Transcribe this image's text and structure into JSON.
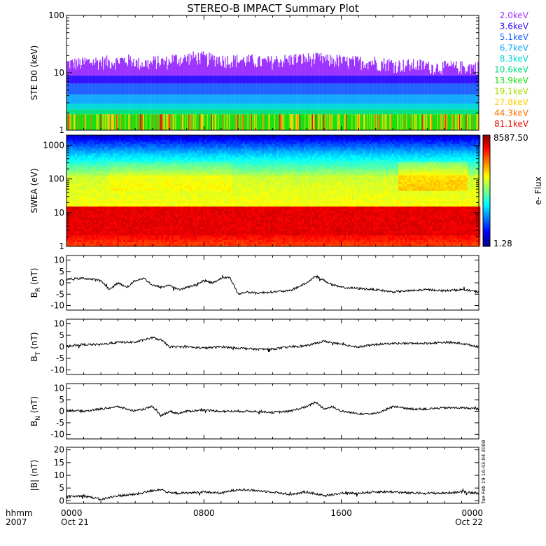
{
  "title": "STEREO-B IMPACT Summary Plot",
  "footer": {
    "left_top": "hhmm",
    "left_bottom": "2007",
    "stamp": "Tue Feb 19 16:43:04 2008"
  },
  "colors": {
    "axis": "#000000",
    "trace": "#000000"
  },
  "chart_data": [
    {
      "type": "area",
      "ylabel": "STE D0 (keV)",
      "yscale": "log",
      "ylim": [
        1,
        100
      ],
      "yticks": [
        "1",
        "10",
        "100"
      ],
      "legend": [
        {
          "label": "2.0keV",
          "color": "#9b30ff"
        },
        {
          "label": "3.6keV",
          "color": "#3010ff"
        },
        {
          "label": "5.1keV",
          "color": "#1e60ff"
        },
        {
          "label": "6.7keV",
          "color": "#10a8ff"
        },
        {
          "label": "8.3keV",
          "color": "#00d8d8"
        },
        {
          "label": "10.6keV",
          "color": "#00e080"
        },
        {
          "label": "13.9keV",
          "color": "#10e010"
        },
        {
          "label": "19.1keV",
          "color": "#a8e000"
        },
        {
          "label": "27.8keV",
          "color": "#ffd000"
        },
        {
          "label": "44.3keV",
          "color": "#ff7000"
        },
        {
          "label": "81.1keV",
          "color": "#e01000"
        }
      ],
      "series_top_profile": [
        15,
        16,
        16,
        17,
        15,
        16,
        18,
        19,
        18,
        17,
        17,
        16,
        17,
        18,
        18,
        17,
        16,
        16,
        15,
        14,
        14,
        13,
        13,
        13
      ]
    },
    {
      "type": "heatmap",
      "ylabel": "SWEA (eV)",
      "yscale": "log",
      "ylim": [
        1,
        2000
      ],
      "yticks": [
        "1",
        "10",
        "100",
        "1000"
      ],
      "colorbar": {
        "max": "8587.50",
        "min": "1.28",
        "label": "e- Flux"
      }
    },
    {
      "type": "line",
      "ylabel": "B_R (nT)",
      "ylabel_main": "B",
      "ylabel_sub": "R",
      "ylabel_unit": "(nT)",
      "ylim": [
        -12,
        12
      ],
      "yticks": [
        "10",
        "5",
        "0",
        "-5",
        "-10"
      ],
      "ytick_values": [
        10,
        5,
        0,
        -5,
        -10
      ],
      "x": [
        0,
        1,
        2,
        2.5,
        3,
        3.5,
        4,
        4.5,
        5,
        5.5,
        6,
        6.5,
        7,
        7.5,
        8,
        8.5,
        9,
        9.5,
        10,
        10.5,
        11,
        12,
        13,
        14,
        14.5,
        15,
        15.5,
        16,
        17,
        18,
        19,
        20,
        21,
        22,
        23,
        24
      ],
      "y": [
        1.5,
        2,
        1,
        -3,
        0,
        -2,
        1,
        2,
        -1,
        -2,
        -1,
        -3,
        -2,
        -1,
        1,
        0,
        2,
        2.5,
        -5,
        -4,
        -4.5,
        -4,
        -3.5,
        0,
        3,
        1,
        -1,
        -2,
        -2.5,
        -3,
        -4,
        -3.5,
        -3,
        -3.5,
        -3,
        -4
      ]
    },
    {
      "type": "line",
      "ylabel": "B_T (nT)",
      "ylabel_main": "B",
      "ylabel_sub": "T",
      "ylabel_unit": "(nT)",
      "ylim": [
        -12,
        12
      ],
      "yticks": [
        "10",
        "5",
        "0",
        "-5",
        "-10"
      ],
      "ytick_values": [
        10,
        5,
        0,
        -5,
        -10
      ],
      "x": [
        0,
        1,
        2,
        3,
        4,
        5,
        5.5,
        6,
        7,
        8,
        9,
        10,
        11,
        12,
        13,
        14,
        15,
        16,
        17,
        18,
        19,
        20,
        21,
        22,
        23,
        24
      ],
      "y": [
        0.5,
        1,
        1,
        2,
        2,
        4,
        3,
        0,
        0,
        -0.5,
        0,
        -0.5,
        -1,
        -1,
        0,
        0.5,
        2.5,
        1,
        0,
        1,
        1.5,
        1.5,
        1.5,
        2,
        1.5,
        0
      ]
    },
    {
      "type": "line",
      "ylabel": "B_N (nT)",
      "ylabel_main": "B",
      "ylabel_sub": "N",
      "ylabel_unit": "(nT)",
      "ylim": [
        -12,
        12
      ],
      "yticks": [
        "10",
        "5",
        "0",
        "-5",
        "-10"
      ],
      "ytick_values": [
        10,
        5,
        0,
        -5,
        -10
      ],
      "x": [
        0,
        1,
        2,
        3,
        4,
        5,
        5.5,
        6,
        6.5,
        7,
        8,
        9,
        10,
        11,
        12,
        13,
        14,
        14.5,
        15,
        15.5,
        16,
        17,
        18,
        19,
        20,
        21,
        22,
        23,
        24
      ],
      "y": [
        0.5,
        0,
        1,
        2,
        0,
        2,
        -2,
        0,
        -1,
        0,
        0.5,
        0,
        0,
        0,
        -0.5,
        0,
        2,
        4,
        1,
        2,
        0,
        -1,
        -1,
        2,
        1,
        1,
        1.5,
        1.5,
        1
      ]
    },
    {
      "type": "line",
      "ylabel": "|B| (nT)",
      "ylabel_main": "|B|",
      "ylabel_sub": "",
      "ylabel_unit": "(nT)",
      "ylim": [
        -1,
        21
      ],
      "yticks": [
        "20",
        "15",
        "10",
        "5",
        "0"
      ],
      "ytick_values": [
        20,
        15,
        10,
        5,
        0
      ],
      "x": [
        0,
        1,
        2,
        3,
        4,
        5,
        5.5,
        6,
        7,
        8,
        9,
        10,
        11,
        12,
        13,
        14,
        15,
        16,
        17,
        18,
        19,
        20,
        21,
        22,
        23,
        24
      ],
      "y": [
        1.5,
        2,
        0.5,
        2,
        2.5,
        4,
        4.5,
        3,
        3,
        3.5,
        3,
        4.5,
        4,
        3.5,
        2.5,
        3.5,
        2,
        3,
        3,
        3.5,
        3.5,
        3,
        3,
        3,
        3.5,
        3
      ]
    }
  ],
  "x_axis": {
    "xlim": [
      0,
      24
    ],
    "ticks": [
      {
        "value": 0,
        "label_top": "0000",
        "label_bottom": "Oct 21"
      },
      {
        "value": 8,
        "label_top": "0800",
        "label_bottom": ""
      },
      {
        "value": 16,
        "label_top": "1600",
        "label_bottom": ""
      },
      {
        "value": 24,
        "label_top": "0000",
        "label_bottom": "Oct 22"
      }
    ]
  }
}
